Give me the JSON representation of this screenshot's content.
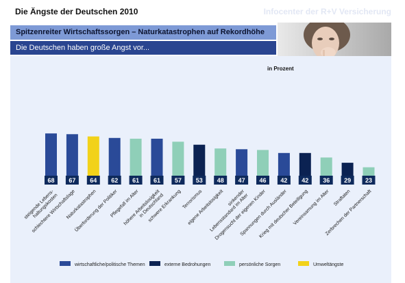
{
  "header": {
    "title": "Die Ängste der Deutschen 2010",
    "brand": "Infocenter der R+V Versicherung",
    "headline": "Spitzenreiter Wirtschaftssorgen – Naturkatastrophen auf Rekordhöhe",
    "subheadline": "Die Deutschen haben große Angst vor..."
  },
  "colors": {
    "wirtschaftlich": "#2a4a98",
    "extern": "#0b2252",
    "persoenlich": "#8fcfb8",
    "umwelt": "#f2d21a",
    "label_box": "#0e2a5c"
  },
  "chart_data": {
    "type": "bar",
    "unit_label": "in Prozent",
    "ylim": [
      0,
      80
    ],
    "bars": [
      {
        "label": "steigende Lebens-\nhaltungskosten",
        "value": 68,
        "group": "wirtschaftlich"
      },
      {
        "label": "schlechtere Wirtschaftslage",
        "value": 67,
        "group": "wirtschaftlich"
      },
      {
        "label": "Naturkatastrophen",
        "value": 64,
        "group": "umwelt"
      },
      {
        "label": "Überforderung der Politiker",
        "value": 62,
        "group": "wirtschaftlich"
      },
      {
        "label": "Pflegefall im Alter",
        "value": 61,
        "group": "persoenlich"
      },
      {
        "label": "höhere Arbeitslosigkeit\nin Deutschland",
        "value": 61,
        "group": "wirtschaftlich"
      },
      {
        "label": "schwere Erkrankung",
        "value": 57,
        "group": "persoenlich"
      },
      {
        "label": "Terrorismus",
        "value": 53,
        "group": "extern"
      },
      {
        "label": "eigene Arbeitslosigkeit",
        "value": 48,
        "group": "persoenlich"
      },
      {
        "label": "sinkender\nLebensstandard im Alter",
        "value": 47,
        "group": "wirtschaftlich"
      },
      {
        "label": "Drogensucht der eigenen Kinder",
        "value": 46,
        "group": "persoenlich"
      },
      {
        "label": "Spannungen durch Ausländer",
        "value": 42,
        "group": "wirtschaftlich"
      },
      {
        "label": "Krieg mit deutscher Beteiligung",
        "value": 42,
        "group": "extern"
      },
      {
        "label": "Vereinsamung im Alter",
        "value": 36,
        "group": "persoenlich"
      },
      {
        "label": "Straftaten",
        "value": 29,
        "group": "extern"
      },
      {
        "label": "Zerbrechen der Partnerschaft",
        "value": 23,
        "group": "persoenlich"
      }
    ],
    "legend": [
      {
        "label": "wirtschaftliche/politische Themen",
        "group": "wirtschaftlich"
      },
      {
        "label": "externe Bedrohungen",
        "group": "extern"
      },
      {
        "label": "persönliche Sorgen",
        "group": "persoenlich"
      },
      {
        "label": "Umweltängste",
        "group": "umwelt"
      }
    ]
  }
}
